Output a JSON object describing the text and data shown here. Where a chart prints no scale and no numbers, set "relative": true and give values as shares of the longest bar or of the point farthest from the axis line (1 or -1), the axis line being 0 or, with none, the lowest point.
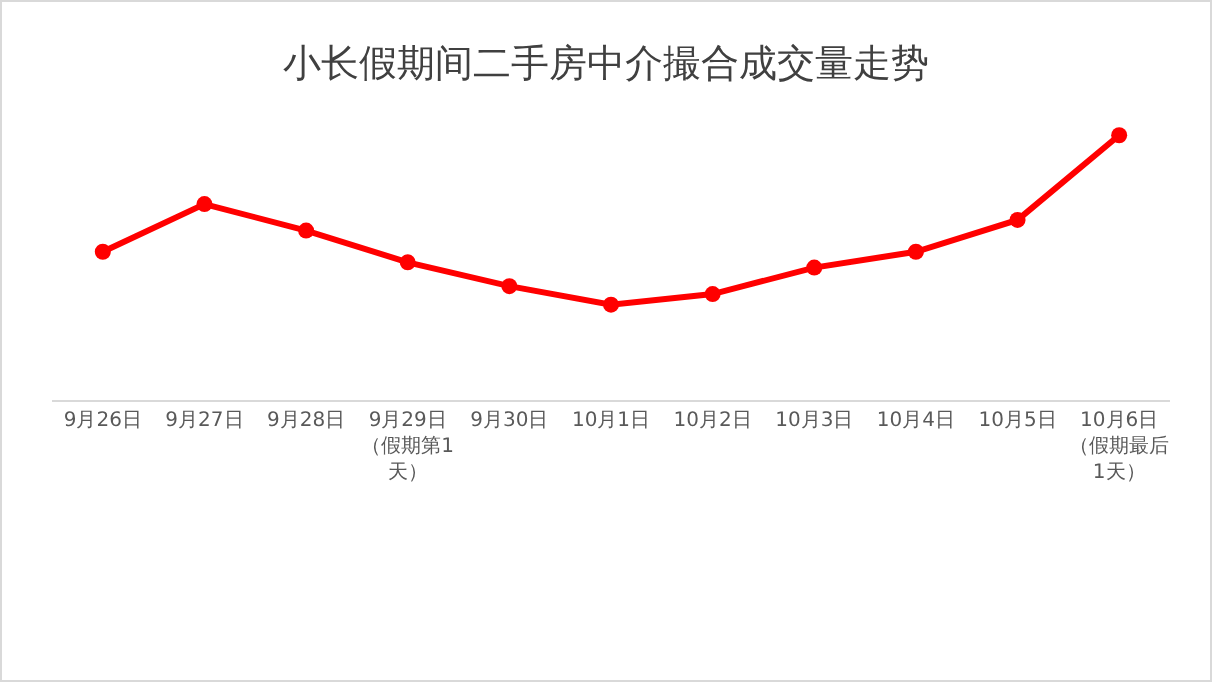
{
  "chart_data": {
    "type": "line",
    "title": "小长假期间二手房中介撮合成交量走势",
    "relative": true,
    "categories": [
      "9月26日",
      "9月27日",
      "9月28日",
      "9月29日（假期第1天）",
      "9月30日",
      "10月1日",
      "10月2日",
      "10月3日",
      "10月4日",
      "10月5日",
      "10月6日（假期最后1天）"
    ],
    "series": [
      {
        "color": "#ff0000",
        "values": [
          0.56,
          0.74,
          0.64,
          0.52,
          0.43,
          0.36,
          0.4,
          0.5,
          0.56,
          0.68,
          1
        ]
      }
    ],
    "marker": "circle",
    "line_style": "solid",
    "grid": false
  }
}
